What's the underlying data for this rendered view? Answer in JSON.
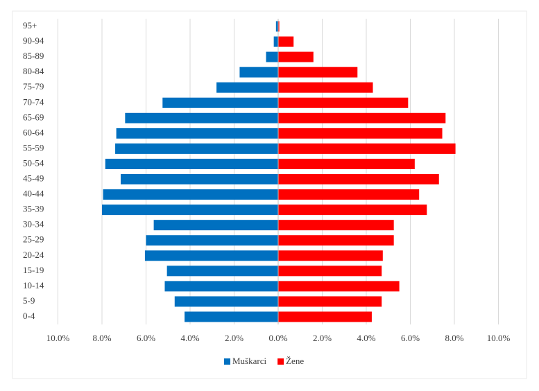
{
  "chart_data": {
    "type": "pyramid",
    "categories": [
      "0-4",
      "5-9",
      "10-14",
      "15-19",
      "20-24",
      "25-29",
      "30-34",
      "35-39",
      "40-44",
      "45-49",
      "50-54",
      "55-59",
      "60-64",
      "65-69",
      "70-74",
      "75-79",
      "80-84",
      "85-89",
      "90-94",
      "95+"
    ],
    "series": [
      {
        "name": "Muškarci",
        "color": "#0070c0",
        "values": [
          -4.25,
          -4.7,
          -5.15,
          -5.05,
          -6.05,
          -6.0,
          -5.65,
          -8.0,
          -7.95,
          -7.15,
          -7.85,
          -7.4,
          -7.35,
          -6.95,
          -5.25,
          -2.8,
          -1.75,
          -0.55,
          -0.2,
          -0.1
        ]
      },
      {
        "name": "Žene",
        "color": "#ff0000",
        "values": [
          4.25,
          4.7,
          5.5,
          4.7,
          4.75,
          5.25,
          5.25,
          6.75,
          6.4,
          7.3,
          6.2,
          8.05,
          7.45,
          7.6,
          5.9,
          4.3,
          3.6,
          1.6,
          0.7,
          0.05
        ]
      }
    ],
    "xlim": [
      -10,
      10
    ],
    "xticks": [
      {
        "value": -10,
        "label": "10.0%"
      },
      {
        "value": -8,
        "label": "8.0%"
      },
      {
        "value": -6,
        "label": "6.0%"
      },
      {
        "value": -4,
        "label": "4.0%"
      },
      {
        "value": -2,
        "label": "2.0%"
      },
      {
        "value": 0,
        "label": "0.0%"
      },
      {
        "value": 2,
        "label": "2.0%"
      },
      {
        "value": 4,
        "label": "4.0%"
      },
      {
        "value": 6,
        "label": "6.0%"
      },
      {
        "value": 8,
        "label": "8.0%"
      },
      {
        "value": 10,
        "label": "10.0%"
      }
    ],
    "grid": true,
    "legend": "bottom"
  }
}
